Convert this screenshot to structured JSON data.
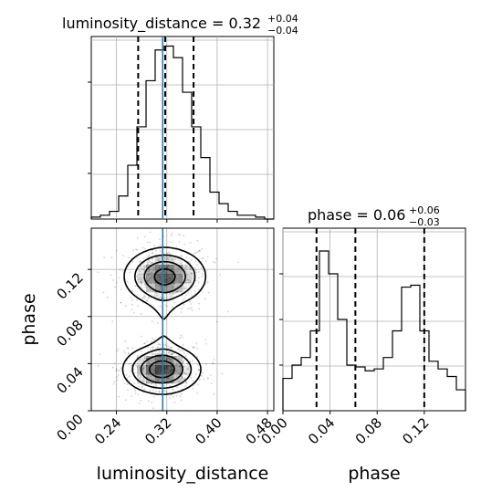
{
  "chart_data": {
    "type": "corner",
    "colors": {
      "truth_line": "#1f77b4",
      "hist": "#000000",
      "grid": "#b0b0b0",
      "density": "#000000"
    },
    "grid": true,
    "titles": {
      "luminosity_distance": {
        "prefix": "luminosity_distance = 0.32",
        "sup": "+0.04",
        "sub": "−0.04"
      },
      "phase": {
        "prefix": "phase = 0.06",
        "sup": "+0.06",
        "sub": "−0.03"
      }
    },
    "xlabels": {
      "luminosity_distance": "luminosity_distance",
      "phase": "phase"
    },
    "ylabels": {
      "phase": "phase"
    },
    "luminosity_distance": {
      "range": [
        0.2,
        0.49
      ],
      "ticks": [
        "0.24",
        "0.32",
        "0.40",
        "0.48"
      ],
      "tick_values": [
        0.24,
        0.32,
        0.4,
        0.48
      ],
      "quantiles": [
        0.2745,
        0.3175,
        0.3625
      ],
      "truth": 0.3135,
      "hist_bins": [
        0.2,
        0.2145,
        0.229,
        0.2435,
        0.258,
        0.2725,
        0.287,
        0.3015,
        0.316,
        0.3305,
        0.345,
        0.3595,
        0.374,
        0.3885,
        0.403,
        0.4175,
        0.432,
        0.4465,
        0.461,
        0.4755,
        0.49
      ],
      "hist_counts": [
        1,
        2,
        4,
        12,
        28,
        48,
        72,
        88,
        90,
        84,
        66,
        48,
        32,
        14,
        8,
        4,
        2,
        2,
        1,
        0
      ],
      "hist_max": 95
    },
    "phase": {
      "range": [
        0.0,
        0.155
      ],
      "ticks": [
        "0.00",
        "0.04",
        "0.08",
        "0.12"
      ],
      "tick_values": [
        0.0,
        0.04,
        0.08,
        0.12
      ],
      "quantiles": [
        0.0285,
        0.0615,
        0.12
      ],
      "truth": null,
      "hist_bins": [
        0.0,
        0.00775,
        0.0155,
        0.02325,
        0.031,
        0.03875,
        0.0465,
        0.05425,
        0.062,
        0.06975,
        0.0775,
        0.08525,
        0.093,
        0.10075,
        0.1085,
        0.11625,
        0.124,
        0.13175,
        0.1395,
        0.14725,
        0.155
      ],
      "hist_counts": [
        17,
        24,
        28,
        42,
        84,
        72,
        48,
        24,
        23,
        21,
        22,
        28,
        42,
        65,
        66,
        42,
        26,
        22,
        18,
        11
      ],
      "hist_max": 96
    },
    "density": {
      "x_param": "luminosity_distance",
      "y_param": "phase",
      "blobs": [
        {
          "x": 0.317,
          "y": 0.114,
          "sx": 0.032,
          "sy": 0.012,
          "weight": 1.0
        },
        {
          "x": 0.312,
          "y": 0.035,
          "sx": 0.03,
          "sy": 0.01,
          "weight": 1.1
        }
      ]
    }
  }
}
